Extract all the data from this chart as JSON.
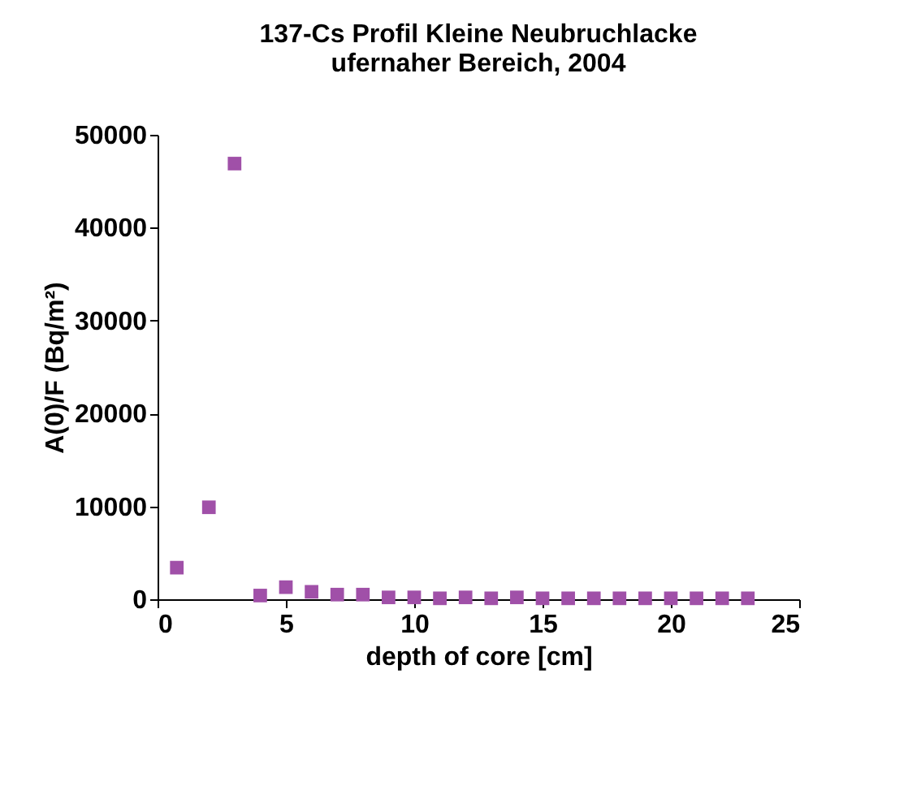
{
  "chart_data": {
    "type": "scatter",
    "title": "137-Cs Profil Kleine Neubruchlacke\nufernaher Bereich, 2004",
    "xlabel": "depth of core [cm]",
    "ylabel": "A(0)/F (Bq/m²)",
    "x": [
      0.75,
      2,
      3,
      4,
      5,
      6,
      7,
      8,
      9,
      10,
      11,
      12,
      13,
      14,
      15,
      16,
      17,
      18,
      19,
      20,
      21,
      22,
      23
    ],
    "series": [
      {
        "color": "#a050a8",
        "values": [
          3400,
          9900,
          46900,
          400,
          1300,
          800,
          500,
          500,
          200,
          200,
          100,
          200,
          100,
          200,
          100,
          100,
          100,
          100,
          100,
          100,
          100,
          100,
          100
        ]
      }
    ],
    "xlim": [
      0,
      25
    ],
    "xticks": [
      0,
      5,
      10,
      15,
      20,
      25
    ],
    "ylim": [
      0,
      50000
    ],
    "yticks": [
      0,
      10000,
      20000,
      30000,
      40000,
      50000
    ],
    "marker": "square",
    "grid": false
  }
}
